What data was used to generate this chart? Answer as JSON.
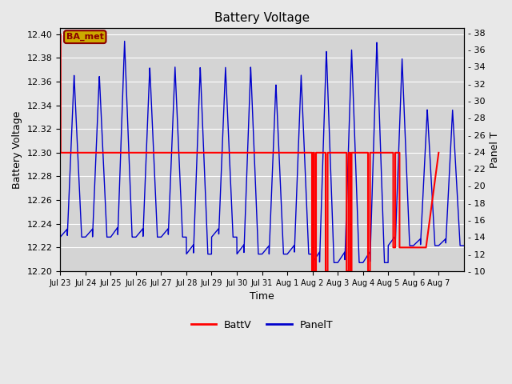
{
  "title": "Battery Voltage",
  "xlabel": "Time",
  "ylabel_left": "Battery Voltage",
  "ylabel_right": "Panel T",
  "ylim_left": [
    12.2,
    12.405
  ],
  "ylim_right": [
    10,
    38.5
  ],
  "fig_bg": "#e8e8e8",
  "plot_bg": "#d4d4d4",
  "annotation_text": "BA_met",
  "annotation_fg": "#8B0000",
  "annotation_bg": "#ccaa00",
  "x_tick_labels": [
    "Jul 23",
    "Jul 24",
    "Jul 25",
    "Jul 26",
    "Jul 27",
    "Jul 28",
    "Jul 29",
    "Jul 30",
    "Jul 31",
    "Aug 1",
    "Aug 2",
    "Aug 3",
    "Aug 4",
    "Aug 5",
    "Aug 6",
    "Aug 7"
  ],
  "battv_color": "#ff0000",
  "panelt_color": "#0000cc",
  "legend_battv": "BattV",
  "legend_panelt": "PanelT",
  "n_days": 16,
  "day_peaks": [
    33,
    33,
    37,
    34,
    34,
    34,
    34,
    34,
    32,
    33,
    36,
    36,
    37,
    35,
    29,
    29
  ],
  "day_lows": [
    14,
    14,
    14,
    14,
    14,
    12,
    14,
    12,
    12,
    12,
    11,
    11,
    11,
    13,
    13,
    13
  ],
  "battv_x": [
    0,
    0.015,
    0.015,
    9.98,
    9.98,
    10.03,
    10.03,
    10.07,
    10.07,
    10.14,
    10.14,
    10.52,
    10.52,
    10.6,
    10.6,
    11.35,
    11.35,
    11.43,
    11.43,
    11.5,
    11.5,
    11.55,
    11.55,
    12.2,
    12.2,
    12.28,
    12.28,
    13.2,
    13.2,
    13.28,
    13.28,
    13.45,
    13.45,
    14.5,
    15.0
  ],
  "battv_y": [
    12.4,
    12.4,
    12.3,
    12.3,
    12.2,
    12.2,
    12.3,
    12.3,
    12.2,
    12.2,
    12.3,
    12.3,
    12.2,
    12.2,
    12.3,
    12.3,
    12.2,
    12.2,
    12.3,
    12.3,
    12.2,
    12.2,
    12.3,
    12.3,
    12.2,
    12.2,
    12.3,
    12.3,
    12.22,
    12.22,
    12.3,
    12.3,
    12.22,
    12.22,
    12.3
  ],
  "right_yticks": [
    10,
    12,
    14,
    16,
    18,
    20,
    22,
    24,
    26,
    28,
    30,
    32,
    34,
    36,
    38
  ],
  "left_yticks": [
    12.2,
    12.22,
    12.24,
    12.26,
    12.28,
    12.3,
    12.32,
    12.34,
    12.36,
    12.38,
    12.4
  ]
}
